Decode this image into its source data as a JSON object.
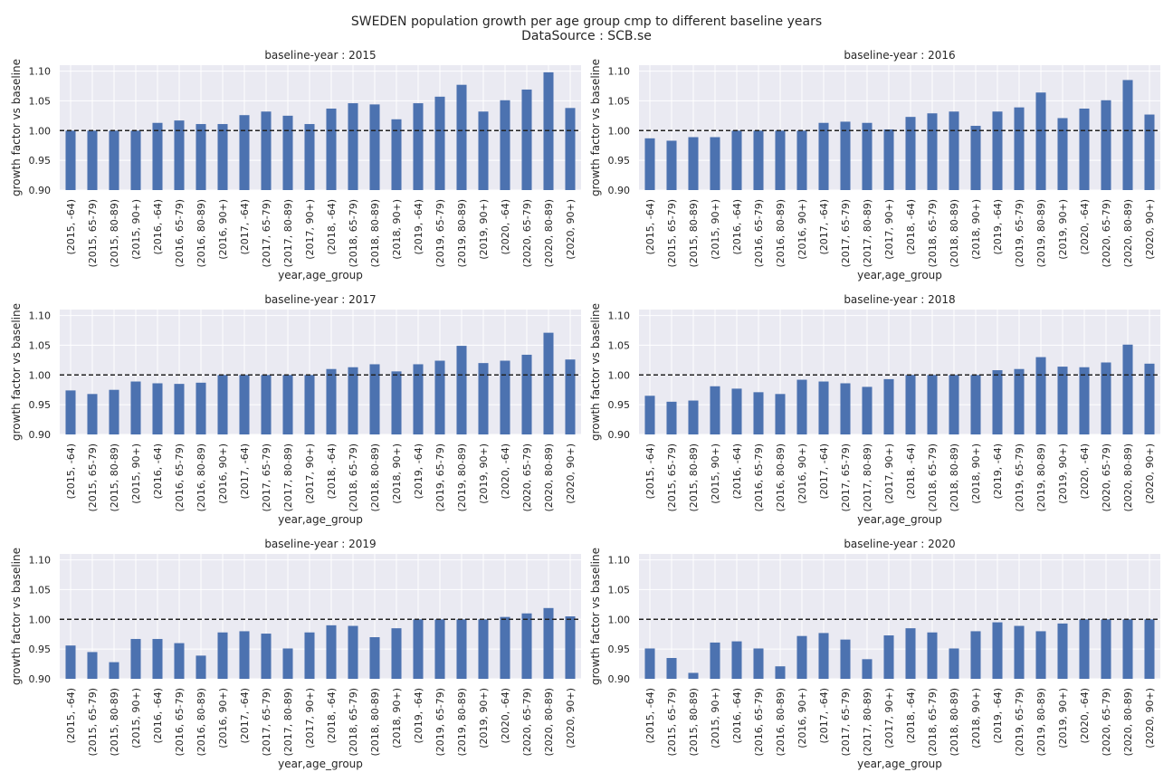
{
  "suptitle": {
    "line1": "SWEDEN population growth per age group cmp to different baseline years",
    "line2": "DataSource : SCB.se"
  },
  "colors": {
    "bar": "#4c72b0",
    "background": "#eaeaf2",
    "grid": "#ffffff",
    "reference_line": "#222222"
  },
  "chart_data": [
    {
      "type": "bar",
      "title": "baseline-year : 2015",
      "xlabel": "year,age_group",
      "ylabel": "growth factor vs baseline",
      "ylim": [
        0.9,
        1.11
      ],
      "yticks": [
        "0.90",
        "0.95",
        "1.00",
        "1.05",
        "1.10"
      ],
      "reference_line": 1.0,
      "grid": true,
      "categories": [
        "(2015, -64)",
        "(2015, 65-79)",
        "(2015, 80-89)",
        "(2015, 90+)",
        "(2016, -64)",
        "(2016, 65-79)",
        "(2016, 80-89)",
        "(2016, 90+)",
        "(2017, -64)",
        "(2017, 65-79)",
        "(2017, 80-89)",
        "(2017, 90+)",
        "(2018, -64)",
        "(2018, 65-79)",
        "(2018, 80-89)",
        "(2018, 90+)",
        "(2019, -64)",
        "(2019, 65-79)",
        "(2019, 80-89)",
        "(2019, 90+)",
        "(2020, -64)",
        "(2020, 65-79)",
        "(2020, 80-89)",
        "(2020, 90+)"
      ],
      "values": [
        1.0,
        1.0,
        1.0,
        1.0,
        1.013,
        1.017,
        1.011,
        1.011,
        1.026,
        1.032,
        1.025,
        1.011,
        1.037,
        1.046,
        1.044,
        1.019,
        1.046,
        1.057,
        1.077,
        1.032,
        1.051,
        1.069,
        1.098,
        1.038
      ]
    },
    {
      "type": "bar",
      "title": "baseline-year : 2016",
      "xlabel": "year,age_group",
      "ylabel": "growth factor vs baseline",
      "ylim": [
        0.9,
        1.11
      ],
      "yticks": [
        "0.90",
        "0.95",
        "1.00",
        "1.05",
        "1.10"
      ],
      "reference_line": 1.0,
      "grid": true,
      "categories": [
        "(2015, -64)",
        "(2015, 65-79)",
        "(2015, 80-89)",
        "(2015, 90+)",
        "(2016, -64)",
        "(2016, 65-79)",
        "(2016, 80-89)",
        "(2016, 90+)",
        "(2017, -64)",
        "(2017, 65-79)",
        "(2017, 80-89)",
        "(2017, 90+)",
        "(2018, -64)",
        "(2018, 65-79)",
        "(2018, 80-89)",
        "(2018, 90+)",
        "(2019, -64)",
        "(2019, 65-79)",
        "(2019, 80-89)",
        "(2019, 90+)",
        "(2020, -64)",
        "(2020, 65-79)",
        "(2020, 80-89)",
        "(2020, 90+)"
      ],
      "values": [
        0.987,
        0.983,
        0.989,
        0.989,
        1.0,
        1.0,
        1.0,
        1.0,
        1.013,
        1.015,
        1.013,
        1.002,
        1.023,
        1.029,
        1.032,
        1.008,
        1.032,
        1.039,
        1.064,
        1.021,
        1.037,
        1.051,
        1.085,
        1.027
      ]
    },
    {
      "type": "bar",
      "title": "baseline-year : 2017",
      "xlabel": "year,age_group",
      "ylabel": "growth factor vs baseline",
      "ylim": [
        0.9,
        1.11
      ],
      "yticks": [
        "0.90",
        "0.95",
        "1.00",
        "1.05",
        "1.10"
      ],
      "reference_line": 1.0,
      "grid": true,
      "categories": [
        "(2015, -64)",
        "(2015, 65-79)",
        "(2015, 80-89)",
        "(2015, 90+)",
        "(2016, -64)",
        "(2016, 65-79)",
        "(2016, 80-89)",
        "(2016, 90+)",
        "(2017, -64)",
        "(2017, 65-79)",
        "(2017, 80-89)",
        "(2017, 90+)",
        "(2018, -64)",
        "(2018, 65-79)",
        "(2018, 80-89)",
        "(2018, 90+)",
        "(2019, -64)",
        "(2019, 65-79)",
        "(2019, 80-89)",
        "(2019, 90+)",
        "(2020, -64)",
        "(2020, 65-79)",
        "(2020, 80-89)",
        "(2020, 90+)"
      ],
      "values": [
        0.974,
        0.968,
        0.975,
        0.989,
        0.986,
        0.985,
        0.987,
        1.0,
        1.0,
        1.0,
        1.0,
        1.0,
        1.01,
        1.013,
        1.018,
        1.006,
        1.018,
        1.024,
        1.049,
        1.02,
        1.024,
        1.034,
        1.071,
        1.026
      ]
    },
    {
      "type": "bar",
      "title": "baseline-year : 2018",
      "xlabel": "year,age_group",
      "ylabel": "growth factor vs baseline",
      "ylim": [
        0.9,
        1.11
      ],
      "yticks": [
        "0.90",
        "0.95",
        "1.00",
        "1.05",
        "1.10"
      ],
      "reference_line": 1.0,
      "grid": true,
      "categories": [
        "(2015, -64)",
        "(2015, 65-79)",
        "(2015, 80-89)",
        "(2015, 90+)",
        "(2016, -64)",
        "(2016, 65-79)",
        "(2016, 80-89)",
        "(2016, 90+)",
        "(2017, -64)",
        "(2017, 65-79)",
        "(2017, 80-89)",
        "(2017, 90+)",
        "(2018, -64)",
        "(2018, 65-79)",
        "(2018, 80-89)",
        "(2018, 90+)",
        "(2019, -64)",
        "(2019, 65-79)",
        "(2019, 80-89)",
        "(2019, 90+)",
        "(2020, -64)",
        "(2020, 65-79)",
        "(2020, 80-89)",
        "(2020, 90+)"
      ],
      "values": [
        0.965,
        0.955,
        0.957,
        0.981,
        0.977,
        0.971,
        0.968,
        0.992,
        0.989,
        0.986,
        0.98,
        0.993,
        1.0,
        1.0,
        1.0,
        1.0,
        1.008,
        1.01,
        1.03,
        1.014,
        1.013,
        1.021,
        1.051,
        1.019
      ]
    },
    {
      "type": "bar",
      "title": "baseline-year : 2019",
      "xlabel": "year,age_group",
      "ylabel": "growth factor vs baseline",
      "ylim": [
        0.9,
        1.11
      ],
      "yticks": [
        "0.90",
        "0.95",
        "1.00",
        "1.05",
        "1.10"
      ],
      "reference_line": 1.0,
      "grid": true,
      "categories": [
        "(2015, -64)",
        "(2015, 65-79)",
        "(2015, 80-89)",
        "(2015, 90+)",
        "(2016, -64)",
        "(2016, 65-79)",
        "(2016, 80-89)",
        "(2016, 90+)",
        "(2017, -64)",
        "(2017, 65-79)",
        "(2017, 80-89)",
        "(2017, 90+)",
        "(2018, -64)",
        "(2018, 65-79)",
        "(2018, 80-89)",
        "(2018, 90+)",
        "(2019, -64)",
        "(2019, 65-79)",
        "(2019, 80-89)",
        "(2019, 90+)",
        "(2020, -64)",
        "(2020, 65-79)",
        "(2020, 80-89)",
        "(2020, 90+)"
      ],
      "values": [
        0.956,
        0.945,
        0.928,
        0.967,
        0.967,
        0.96,
        0.939,
        0.978,
        0.98,
        0.976,
        0.951,
        0.978,
        0.99,
        0.989,
        0.97,
        0.985,
        1.0,
        1.0,
        1.0,
        1.0,
        1.004,
        1.01,
        1.019,
        1.005
      ]
    },
    {
      "type": "bar",
      "title": "baseline-year : 2020",
      "xlabel": "year,age_group",
      "ylabel": "growth factor vs baseline",
      "ylim": [
        0.9,
        1.11
      ],
      "yticks": [
        "0.90",
        "0.95",
        "1.00",
        "1.05",
        "1.10"
      ],
      "reference_line": 1.0,
      "grid": true,
      "categories": [
        "(2015, -64)",
        "(2015, 65-79)",
        "(2015, 80-89)",
        "(2015, 90+)",
        "(2016, -64)",
        "(2016, 65-79)",
        "(2016, 80-89)",
        "(2016, 90+)",
        "(2017, -64)",
        "(2017, 65-79)",
        "(2017, 80-89)",
        "(2017, 90+)",
        "(2018, -64)",
        "(2018, 65-79)",
        "(2018, 80-89)",
        "(2018, 90+)",
        "(2019, -64)",
        "(2019, 65-79)",
        "(2019, 80-89)",
        "(2019, 90+)",
        "(2020, -64)",
        "(2020, 65-79)",
        "(2020, 80-89)",
        "(2020, 90+)"
      ],
      "values": [
        0.951,
        0.935,
        0.91,
        0.961,
        0.963,
        0.951,
        0.921,
        0.972,
        0.977,
        0.966,
        0.933,
        0.973,
        0.985,
        0.978,
        0.951,
        0.98,
        0.995,
        0.989,
        0.98,
        0.993,
        1.0,
        1.0,
        1.0,
        1.0
      ]
    }
  ]
}
